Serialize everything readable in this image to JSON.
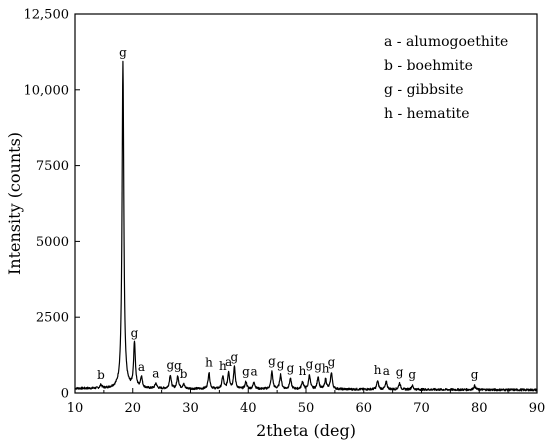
{
  "chart_data": {
    "type": "line",
    "xlabel": "2theta (deg)",
    "ylabel": "Intensity (counts)",
    "xlim": [
      10,
      90
    ],
    "ylim": [
      0,
      12500
    ],
    "x_ticks": [
      10,
      20,
      30,
      40,
      50,
      60,
      70,
      80,
      90
    ],
    "y_ticks": [
      0,
      2500,
      5000,
      7500,
      10000,
      12500
    ],
    "y_tick_labels": [
      "0",
      "2500",
      "5000",
      "7500",
      "10,000",
      "12,500"
    ],
    "grid": false,
    "legend_position": "top-right",
    "legend": [
      "a - alumogoethite",
      "b - boehmite",
      "g - gibbsite",
      "h - hematite"
    ],
    "baseline": 150,
    "peaks": [
      {
        "x": 14.5,
        "y": 260,
        "label": "b"
      },
      {
        "x": 18.3,
        "y": 10900,
        "label": "g"
      },
      {
        "x": 20.3,
        "y": 1650,
        "label": "g"
      },
      {
        "x": 21.5,
        "y": 520,
        "label": "a"
      },
      {
        "x": 24.0,
        "y": 320,
        "label": "a"
      },
      {
        "x": 26.5,
        "y": 600,
        "label": "g"
      },
      {
        "x": 27.8,
        "y": 570,
        "label": "g"
      },
      {
        "x": 28.8,
        "y": 300,
        "label": "b"
      },
      {
        "x": 33.2,
        "y": 680,
        "label": "h"
      },
      {
        "x": 35.6,
        "y": 560,
        "label": "h"
      },
      {
        "x": 36.6,
        "y": 700,
        "label": "a"
      },
      {
        "x": 37.6,
        "y": 860,
        "label": "g"
      },
      {
        "x": 39.6,
        "y": 380,
        "label": "g"
      },
      {
        "x": 41.0,
        "y": 380,
        "label": "a"
      },
      {
        "x": 44.1,
        "y": 720,
        "label": "g"
      },
      {
        "x": 45.6,
        "y": 620,
        "label": "g"
      },
      {
        "x": 47.3,
        "y": 490,
        "label": "g"
      },
      {
        "x": 49.4,
        "y": 400,
        "label": "h"
      },
      {
        "x": 50.6,
        "y": 620,
        "label": "g"
      },
      {
        "x": 52.1,
        "y": 560,
        "label": "g"
      },
      {
        "x": 53.4,
        "y": 480,
        "label": "h"
      },
      {
        "x": 54.4,
        "y": 700,
        "label": "g"
      },
      {
        "x": 62.4,
        "y": 430,
        "label": "h"
      },
      {
        "x": 63.9,
        "y": 400,
        "label": "a"
      },
      {
        "x": 66.2,
        "y": 360,
        "label": "g"
      },
      {
        "x": 68.4,
        "y": 280,
        "label": "g"
      },
      {
        "x": 79.2,
        "y": 280,
        "label": "g"
      }
    ]
  }
}
